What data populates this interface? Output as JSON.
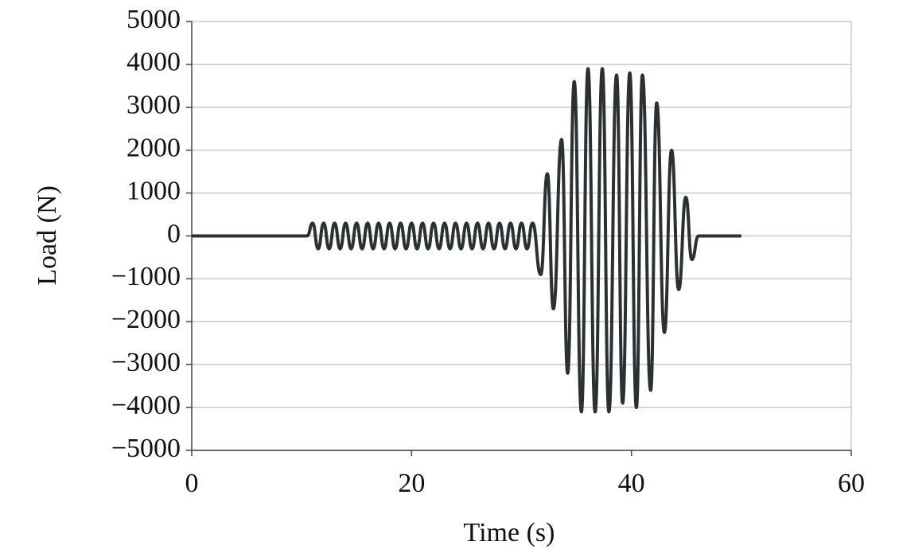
{
  "chart_data": {
    "type": "line",
    "xlabel": "Time (s)",
    "ylabel": "Load (N)",
    "xlim": [
      0,
      60
    ],
    "xticks": [
      0,
      20,
      40,
      60
    ],
    "ylim": [
      -5000,
      5000
    ],
    "yticks": [
      {
        "value": -5000,
        "label": "−5000"
      },
      {
        "value": -4000,
        "label": "−4000"
      },
      {
        "value": -3000,
        "label": "−3000"
      },
      {
        "value": -2000,
        "label": "−2000"
      },
      {
        "value": -1000,
        "label": "−1000"
      },
      0,
      1000,
      2000,
      3000,
      4000,
      5000
    ],
    "grid": true,
    "series": [
      {
        "color": "#2b3033",
        "x": [
          0,
          10.5,
          11,
          11.5,
          12,
          12.5,
          13,
          13.5,
          14,
          14.5,
          15,
          15.5,
          16,
          16.5,
          17,
          17.5,
          18,
          18.5,
          19,
          19.5,
          20,
          20.5,
          21,
          21.5,
          22,
          22.5,
          23,
          23.5,
          24,
          24.5,
          25,
          25.5,
          26,
          26.5,
          27,
          27.5,
          28,
          28.5,
          29,
          29.5,
          30,
          30.5,
          31,
          31.75,
          32.35,
          32.9,
          33.65,
          34.2,
          34.8,
          35.45,
          36.05,
          36.7,
          37.35,
          37.95,
          38.65,
          39.2,
          39.85,
          40.45,
          41.0,
          41.75,
          42.3,
          43.0,
          43.65,
          44.3,
          44.95,
          45.5,
          46.1,
          50
        ],
        "values": [
          0,
          0,
          300,
          -300,
          300,
          -300,
          300,
          -300,
          300,
          -300,
          300,
          -300,
          300,
          -300,
          300,
          -300,
          300,
          -300,
          300,
          -300,
          300,
          -300,
          300,
          -300,
          300,
          -300,
          300,
          -300,
          300,
          -300,
          300,
          -300,
          300,
          -300,
          300,
          -300,
          300,
          -300,
          300,
          -300,
          300,
          -300,
          300,
          -900,
          1450,
          -1700,
          2250,
          -3200,
          3600,
          -4100,
          3900,
          -4100,
          3900,
          -4100,
          3750,
          -3900,
          3800,
          -4000,
          3750,
          -3600,
          3100,
          -2250,
          2000,
          -1250,
          900,
          -550,
          0,
          0
        ]
      }
    ]
  }
}
